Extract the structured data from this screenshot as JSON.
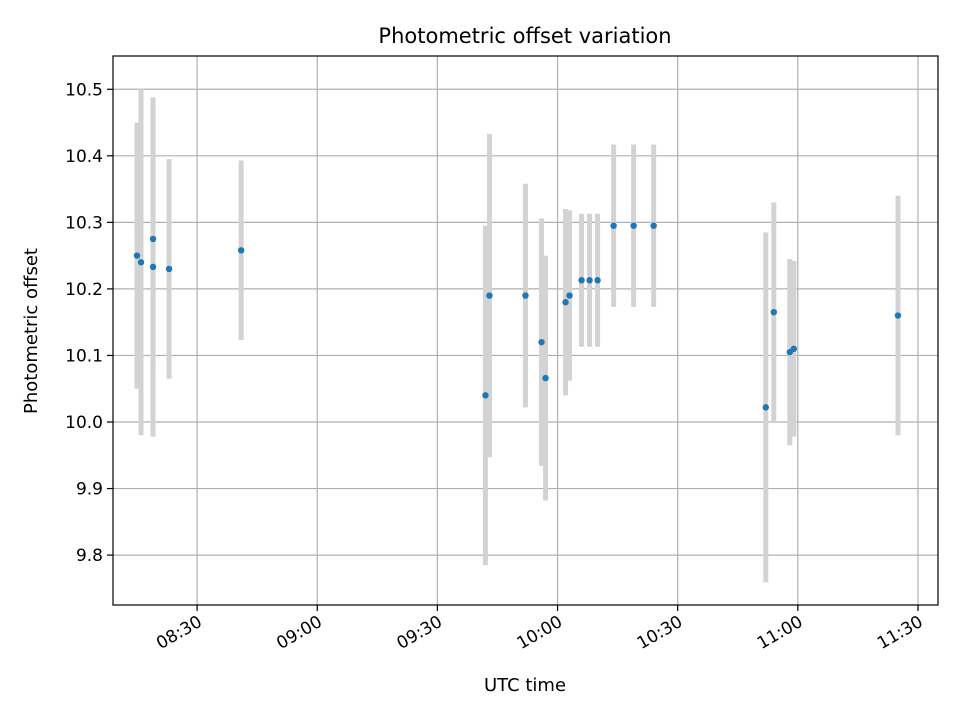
{
  "chart_data": {
    "type": "scatter",
    "title": "Photometric offset variation",
    "xlabel": "UTC time",
    "ylabel": "Photometric offset",
    "xlim": [
      "08:09",
      "11:35"
    ],
    "ylim": [
      9.725,
      10.55
    ],
    "grid": true,
    "xticks": [
      "08:30",
      "09:00",
      "09:30",
      "10:00",
      "10:30",
      "11:00",
      "11:30"
    ],
    "yticks": [
      9.8,
      9.9,
      10.0,
      10.1,
      10.2,
      10.3,
      10.4,
      10.5
    ],
    "colors": {
      "point": "#1f77b4",
      "errorbar": "#d3d3d3",
      "grid": "#b0b0b0"
    },
    "points": [
      {
        "x": "08:15",
        "y": 10.25,
        "yerr": 0.2
      },
      {
        "x": "08:16",
        "y": 10.24,
        "yerr": 0.26
      },
      {
        "x": "08:19",
        "y": 10.275,
        "yerr": 0.2
      },
      {
        "x": "08:19",
        "y": 10.233,
        "yerr": 0.255
      },
      {
        "x": "08:23",
        "y": 10.23,
        "yerr": 0.165
      },
      {
        "x": "08:41",
        "y": 10.258,
        "yerr": 0.135
      },
      {
        "x": "09:42",
        "y": 10.04,
        "yerr": 0.255
      },
      {
        "x": "09:43",
        "y": 10.19,
        "yerr": 0.243
      },
      {
        "x": "09:52",
        "y": 10.19,
        "yerr": 0.168
      },
      {
        "x": "09:56",
        "y": 10.12,
        "yerr": 0.186
      },
      {
        "x": "09:57",
        "y": 10.066,
        "yerr": 0.184
      },
      {
        "x": "10:02",
        "y": 10.18,
        "yerr": 0.14
      },
      {
        "x": "10:03",
        "y": 10.19,
        "yerr": 0.128
      },
      {
        "x": "10:06",
        "y": 10.213,
        "yerr": 0.1
      },
      {
        "x": "10:08",
        "y": 10.213,
        "yerr": 0.1
      },
      {
        "x": "10:10",
        "y": 10.213,
        "yerr": 0.1
      },
      {
        "x": "10:14",
        "y": 10.295,
        "yerr": 0.122
      },
      {
        "x": "10:19",
        "y": 10.295,
        "yerr": 0.122
      },
      {
        "x": "10:24",
        "y": 10.295,
        "yerr": 0.122
      },
      {
        "x": "10:52",
        "y": 10.022,
        "yerr": 0.263
      },
      {
        "x": "10:54",
        "y": 10.165,
        "yerr": 0.165
      },
      {
        "x": "10:58",
        "y": 10.105,
        "yerr": 0.14
      },
      {
        "x": "10:59",
        "y": 10.11,
        "yerr": 0.132
      },
      {
        "x": "11:25",
        "y": 10.16,
        "yerr": 0.18
      }
    ]
  }
}
